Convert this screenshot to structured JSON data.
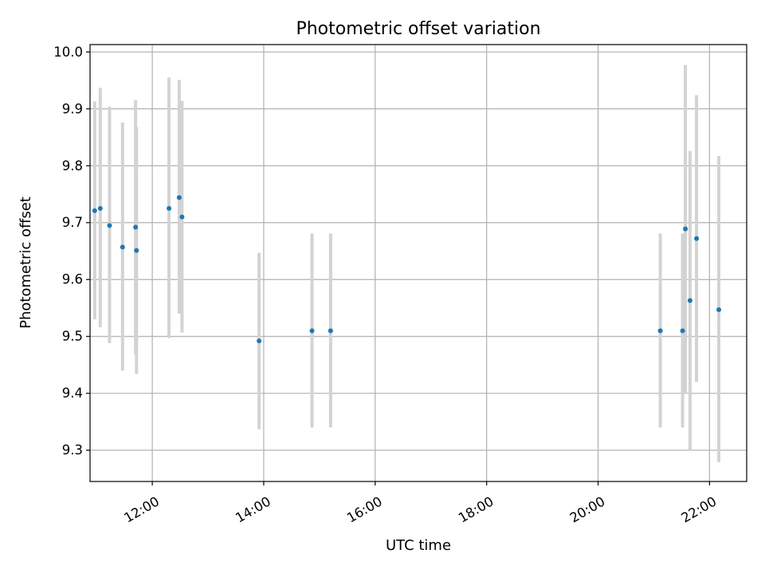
{
  "chart_data": {
    "type": "scatter",
    "title": "Photometric offset variation",
    "xlabel": "UTC time",
    "ylabel": "Photometric offset",
    "xlim": [
      "10:53",
      "22:40"
    ],
    "ylim": [
      9.245,
      10.013
    ],
    "x_ticks": [
      "12:00",
      "14:00",
      "16:00",
      "18:00",
      "20:00",
      "22:00"
    ],
    "y_ticks": [
      9.3,
      9.4,
      9.5,
      9.6,
      9.7,
      9.8,
      9.9,
      10.0
    ],
    "y_tick_labels": [
      "9.3",
      "9.4",
      "9.5",
      "9.6",
      "9.7",
      "9.8",
      "9.9",
      "10.0"
    ],
    "grid": true,
    "marker_color": "#1f77b4",
    "errorbar_color": "#d3d3d3",
    "points": [
      {
        "time": "10:58",
        "y": 9.721,
        "err_low": 9.53,
        "err_high": 9.913
      },
      {
        "time": "11:04",
        "y": 9.725,
        "err_low": 9.516,
        "err_high": 9.937
      },
      {
        "time": "11:14",
        "y": 9.695,
        "err_low": 9.488,
        "err_high": 9.904
      },
      {
        "time": "11:28",
        "y": 9.657,
        "err_low": 9.44,
        "err_high": 9.876
      },
      {
        "time": "11:42",
        "y": 9.692,
        "err_low": 9.468,
        "err_high": 9.915
      },
      {
        "time": "11:43",
        "y": 9.651,
        "err_low": 9.434,
        "err_high": 9.868
      },
      {
        "time": "12:18",
        "y": 9.725,
        "err_low": 9.497,
        "err_high": 9.955
      },
      {
        "time": "12:29",
        "y": 9.744,
        "err_low": 9.54,
        "err_high": 9.951
      },
      {
        "time": "12:32",
        "y": 9.71,
        "err_low": 9.507,
        "err_high": 9.914
      },
      {
        "time": "13:55",
        "y": 9.492,
        "err_low": 9.337,
        "err_high": 9.647
      },
      {
        "time": "14:52",
        "y": 9.51,
        "err_low": 9.34,
        "err_high": 9.681
      },
      {
        "time": "15:12",
        "y": 9.51,
        "err_low": 9.34,
        "err_high": 9.681
      },
      {
        "time": "21:07",
        "y": 9.51,
        "err_low": 9.34,
        "err_high": 9.681
      },
      {
        "time": "21:31",
        "y": 9.51,
        "err_low": 9.34,
        "err_high": 9.681
      },
      {
        "time": "21:34",
        "y": 9.689,
        "err_low": 9.4,
        "err_high": 9.977
      },
      {
        "time": "21:39",
        "y": 9.563,
        "err_low": 9.3,
        "err_high": 9.826
      },
      {
        "time": "21:46",
        "y": 9.672,
        "err_low": 9.42,
        "err_high": 9.924
      },
      {
        "time": "22:10",
        "y": 9.547,
        "err_low": 9.279,
        "err_high": 9.817
      }
    ]
  }
}
